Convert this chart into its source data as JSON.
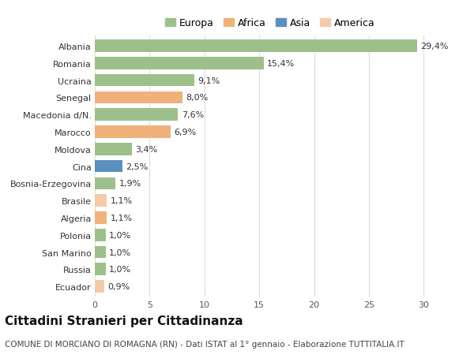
{
  "categories": [
    "Albania",
    "Romania",
    "Ucraina",
    "Senegal",
    "Macedonia d/N.",
    "Marocco",
    "Moldova",
    "Cina",
    "Bosnia-Erzegovina",
    "Brasile",
    "Algeria",
    "Polonia",
    "San Marino",
    "Russia",
    "Ecuador"
  ],
  "values": [
    29.4,
    15.4,
    9.1,
    8.0,
    7.6,
    6.9,
    3.4,
    2.5,
    1.9,
    1.1,
    1.1,
    1.0,
    1.0,
    1.0,
    0.9
  ],
  "labels": [
    "29,4%",
    "15,4%",
    "9,1%",
    "8,0%",
    "7,6%",
    "6,9%",
    "3,4%",
    "2,5%",
    "1,9%",
    "1,1%",
    "1,1%",
    "1,0%",
    "1,0%",
    "1,0%",
    "0,9%"
  ],
  "continents": [
    "Europa",
    "Europa",
    "Europa",
    "Africa",
    "Europa",
    "Africa",
    "Europa",
    "Asia",
    "Europa",
    "America",
    "Africa",
    "Europa",
    "Europa",
    "Europa",
    "America"
  ],
  "colors": {
    "Europa": "#9dc08b",
    "Africa": "#f0b27a",
    "Asia": "#5b8fbe",
    "America": "#f5cba7"
  },
  "legend_order": [
    "Europa",
    "Africa",
    "Asia",
    "America"
  ],
  "xlim": [
    0,
    32
  ],
  "xticks": [
    0,
    5,
    10,
    15,
    20,
    25,
    30
  ],
  "background_color": "#ffffff",
  "plot_bg_color": "#ffffff",
  "grid_color": "#dddddd",
  "title": "Cittadini Stranieri per Cittadinanza",
  "subtitle": "COMUNE DI MORCIANO DI ROMAGNA (RN) - Dati ISTAT al 1° gennaio - Elaborazione TUTTITALIA.IT",
  "bar_height": 0.72,
  "label_fontsize": 8,
  "tick_fontsize": 8,
  "title_fontsize": 11,
  "subtitle_fontsize": 7.5,
  "legend_fontsize": 9
}
